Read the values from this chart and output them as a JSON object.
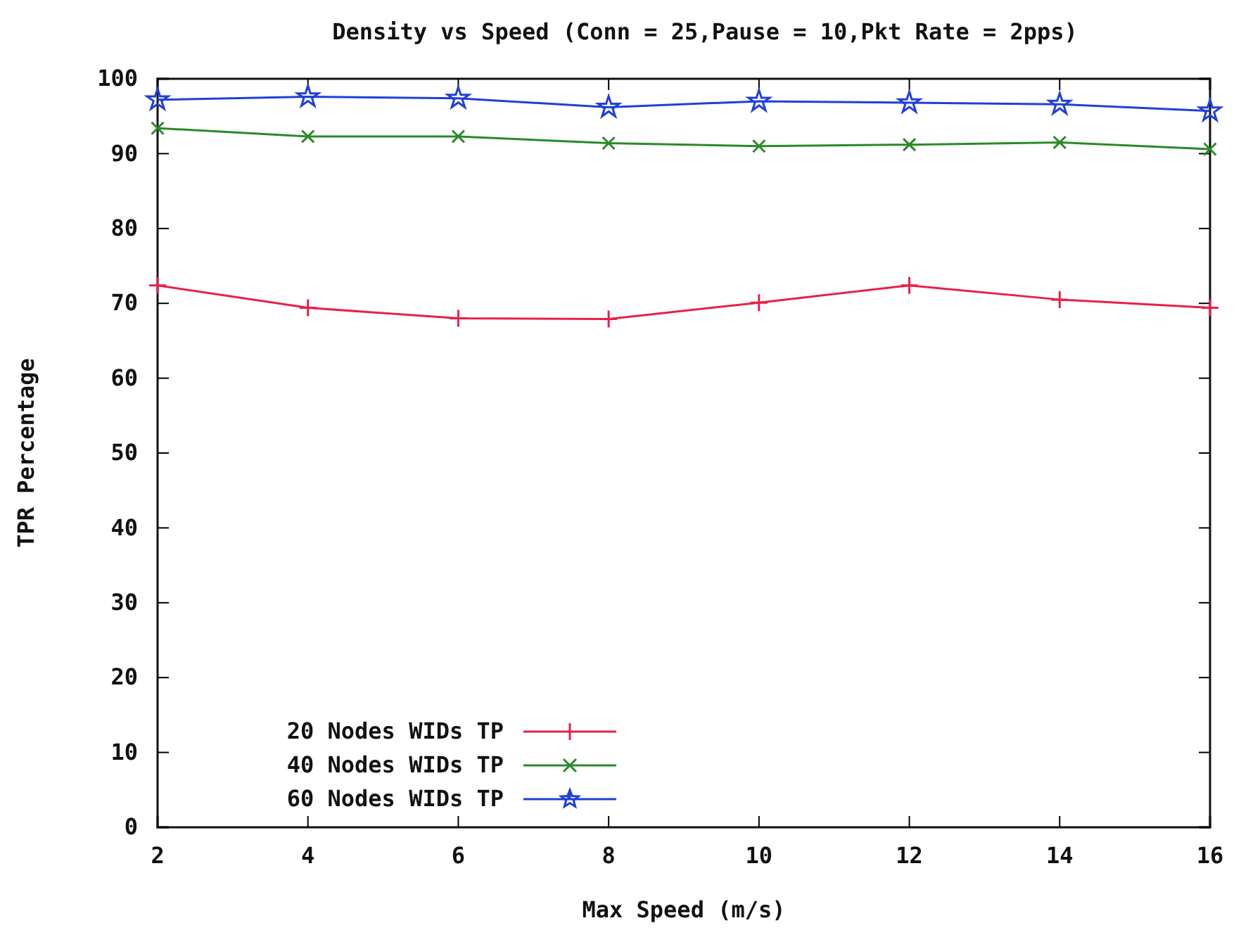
{
  "chart_data": {
    "type": "line",
    "title": "Density vs Speed (Conn = 25,Pause = 10,Pkt Rate = 2pps)",
    "xlabel": "Max Speed (m/s)",
    "ylabel": "TPR Percentage",
    "x": [
      2,
      4,
      6,
      8,
      10,
      12,
      14,
      16
    ],
    "series": [
      {
        "name": "20 Nodes WIDs TP",
        "color": "#e8204a",
        "marker": "cross",
        "values": [
          72.4,
          69.4,
          68,
          67.9,
          70.1,
          72.4,
          70.5,
          69.4
        ]
      },
      {
        "name": "40 Nodes WIDs TP",
        "color": "#2a8a2a",
        "marker": "cross",
        "values": [
          93.4,
          92.3,
          92.3,
          91.4,
          91,
          91.2,
          91.5,
          90.6
        ]
      },
      {
        "name": "60 Nodes WIDs TP",
        "color": "#2040d8",
        "marker": "star",
        "values": [
          97.2,
          97.6,
          97.4,
          96.2,
          97,
          96.8,
          96.6,
          95.7
        ]
      }
    ],
    "xlim": [
      2,
      16
    ],
    "xticks": [
      2,
      4,
      6,
      8,
      10,
      12,
      14,
      16
    ],
    "ylim": [
      0,
      100
    ],
    "yticks": [
      0,
      10,
      20,
      30,
      40,
      50,
      60,
      70,
      80,
      90,
      100
    ],
    "grid": false,
    "legend": "bottom left",
    "line_style": "solid"
  }
}
